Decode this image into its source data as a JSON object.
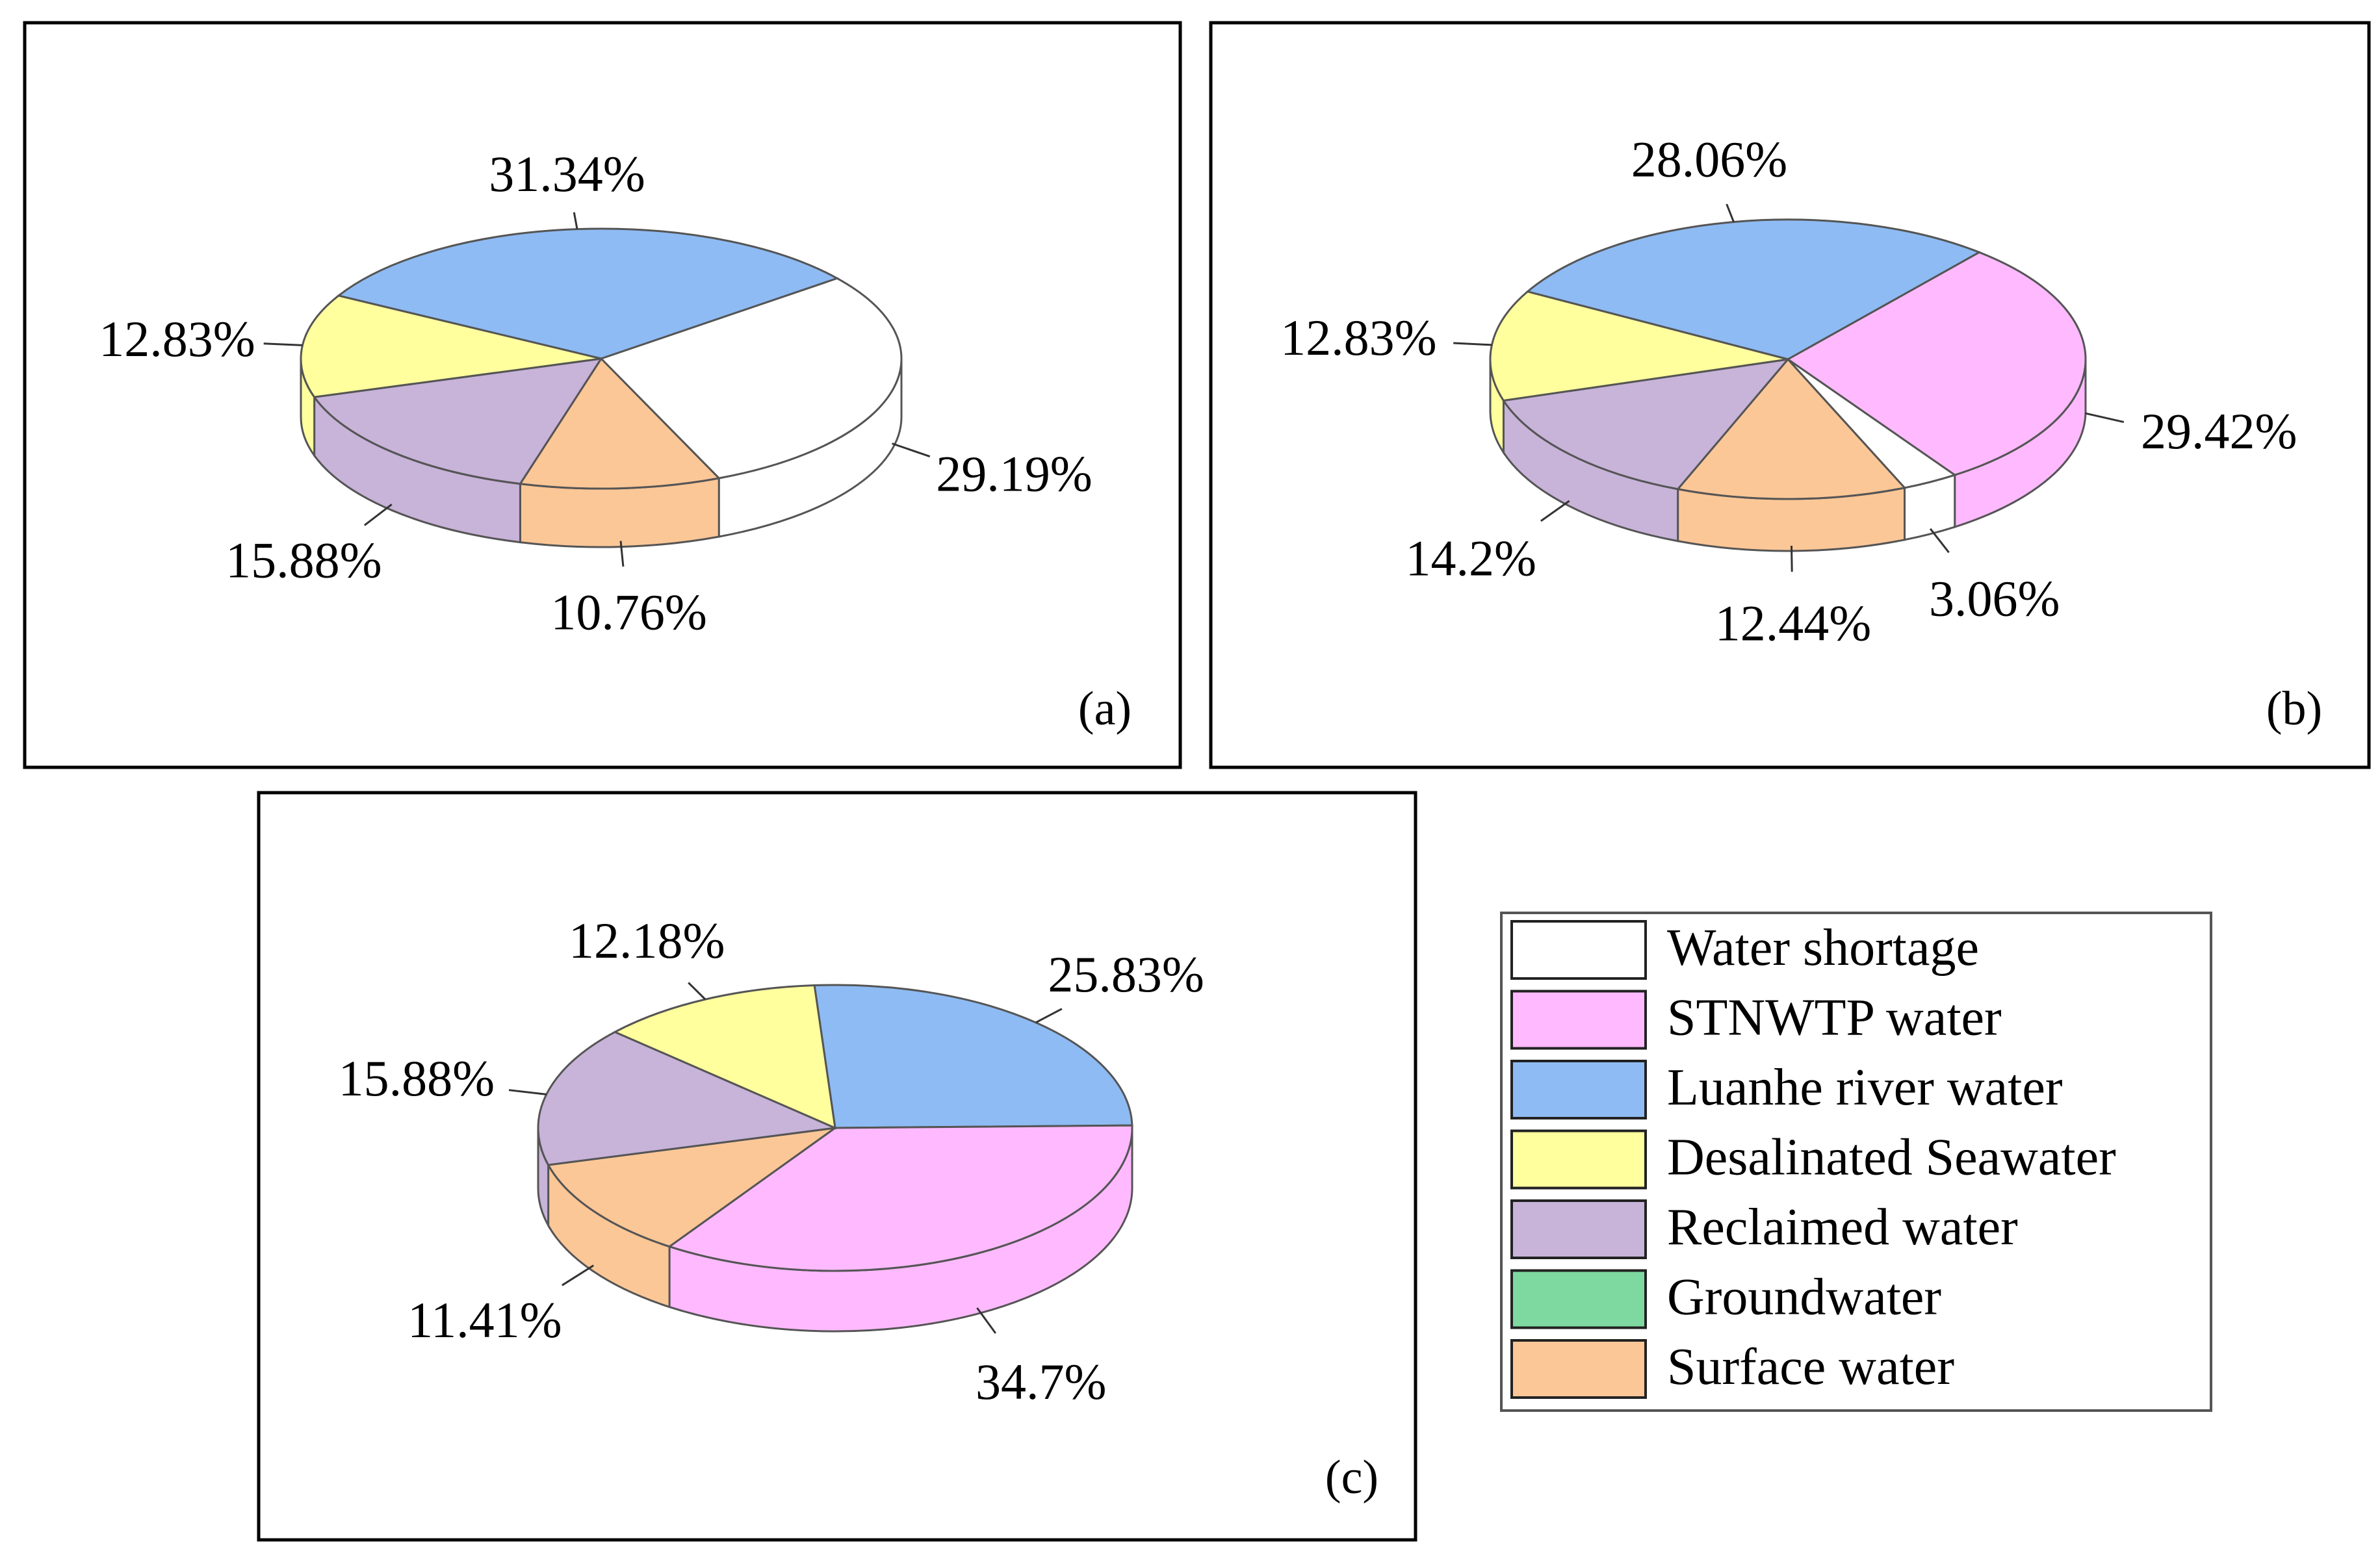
{
  "colors": {
    "Water shortage": "#ffffff",
    "STNWTP water": "#ffbaff",
    "Luanhe river water": "#8ebbf3",
    "Desalinated Seawater": "#ffff9e",
    "Reclaimed water": "#c8b3d9",
    "Groundwater": "#7ed9a1",
    "Surface water": "#fcc797"
  },
  "legend": {
    "items": [
      {
        "label": "Water shortage",
        "color": "#ffffff"
      },
      {
        "label": "STNWTP water",
        "color": "#ffbaff"
      },
      {
        "label": "Luanhe river water",
        "color": "#8ebbf3"
      },
      {
        "label": "Desalinated Seawater",
        "color": "#ffff9e"
      },
      {
        "label": "Reclaimed water",
        "color": "#c8b3d9"
      },
      {
        "label": "Groundwater",
        "color": "#7ed9a1"
      },
      {
        "label": "Surface water",
        "color": "#fcc797"
      }
    ]
  },
  "chart_data": [
    {
      "type": "pie",
      "panel": "(a)",
      "slices": [
        {
          "name": "Luanhe river water",
          "value": 31.34,
          "label": "31.34%"
        },
        {
          "name": "Water shortage",
          "value": 29.19,
          "label": "29.19%"
        },
        {
          "name": "Surface water",
          "value": 10.76,
          "label": "10.76%"
        },
        {
          "name": "Reclaimed water",
          "value": 15.88,
          "label": "15.88%"
        },
        {
          "name": "Desalinated Seawater",
          "value": 12.83,
          "label": "12.83%"
        }
      ]
    },
    {
      "type": "pie",
      "panel": "(b)",
      "slices": [
        {
          "name": "Luanhe river water",
          "value": 28.06,
          "label": "28.06%"
        },
        {
          "name": "STNWTP water",
          "value": 29.42,
          "label": "29.42%"
        },
        {
          "name": "Water shortage",
          "value": 3.06,
          "label": "3.06%"
        },
        {
          "name": "Surface water",
          "value": 12.44,
          "label": "12.44%"
        },
        {
          "name": "Reclaimed water",
          "value": 14.2,
          "label": "14.2%"
        },
        {
          "name": "Desalinated Seawater",
          "value": 12.83,
          "label": "12.83%"
        }
      ]
    },
    {
      "type": "pie",
      "panel": "(c)",
      "slices": [
        {
          "name": "Luanhe river water",
          "value": 25.83,
          "label": "25.83%"
        },
        {
          "name": "STNWTP water",
          "value": 34.7,
          "label": "34.7%"
        },
        {
          "name": "Surface water",
          "value": 11.41,
          "label": "11.41%"
        },
        {
          "name": "Reclaimed water",
          "value": 15.88,
          "label": "15.88%"
        },
        {
          "name": "Desalinated Seawater",
          "value": 12.18,
          "label": "12.18%"
        }
      ]
    }
  ]
}
